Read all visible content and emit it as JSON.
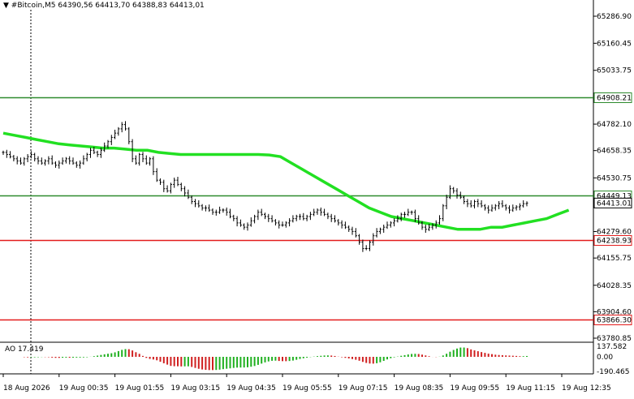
{
  "header": {
    "symbol": "▼ #Bitcoin,M5",
    "ohlc": "64390,56 64413,70 64388,83 64413,01"
  },
  "chart_data": {
    "type": "line",
    "y_axis_labels": [
      {
        "label": "65286.90",
        "value": 65286.9
      },
      {
        "label": "65160.45",
        "value": 65160.45
      },
      {
        "label": "65033.75",
        "value": 65033.75
      },
      {
        "label": "64782.10",
        "value": 64782.1
      },
      {
        "label": "64658.35",
        "value": 64658.35
      },
      {
        "label": "64530.75",
        "value": 64530.75
      },
      {
        "label": "64279.60",
        "value": 64279.6
      },
      {
        "label": "64155.75",
        "value": 64155.75
      },
      {
        "label": "64028.35",
        "value": 64028.35
      },
      {
        "label": "63904.60",
        "value": 63904.6
      },
      {
        "label": "63780.85",
        "value": 63780.85
      }
    ],
    "x_axis_labels": [
      {
        "label": "18 Aug 2026",
        "idx": 0
      },
      {
        "label": "19 Aug 00:35",
        "idx": 16
      },
      {
        "label": "19 Aug 01:55",
        "idx": 32
      },
      {
        "label": "19 Aug 03:15",
        "idx": 48
      },
      {
        "label": "19 Aug 04:35",
        "idx": 64
      },
      {
        "label": "19 Aug 05:55",
        "idx": 80
      },
      {
        "label": "19 Aug 07:15",
        "idx": 96
      },
      {
        "label": "19 Aug 08:35",
        "idx": 112
      },
      {
        "label": "19 Aug 09:55",
        "idx": 128
      },
      {
        "label": "19 Aug 11:15",
        "idx": 144
      },
      {
        "label": "19 Aug 12:35",
        "idx": 160
      }
    ],
    "ylim": [
      63780.85,
      65286.9
    ],
    "horizontal_levels": [
      {
        "value": 64908.21,
        "label": "64908.21",
        "color": "#2e8b2e"
      },
      {
        "value": 64449.13,
        "label": "64449.13",
        "color": "#2e8b2e"
      },
      {
        "value": 64238.93,
        "label": "64238.93",
        "color": "#e31c1c"
      },
      {
        "value": 63866.3,
        "label": "63866.30",
        "color": "#e31c1c"
      }
    ],
    "current_price": {
      "value": 64413.01,
      "label": "64413.01"
    },
    "closes": [
      64650,
      64640,
      64630,
      64620,
      64610,
      64600,
      64620,
      64630,
      64640,
      64620,
      64610,
      64600,
      64610,
      64620,
      64600,
      64590,
      64600,
      64610,
      64620,
      64610,
      64600,
      64590,
      64600,
      64620,
      64640,
      64660,
      64650,
      64640,
      64660,
      64680,
      64700,
      64720,
      64740,
      64760,
      64780,
      64760,
      64700,
      64620,
      64600,
      64640,
      64620,
      64600,
      64620,
      64560,
      64520,
      64510,
      64480,
      64470,
      64500,
      64520,
      64500,
      64480,
      64460,
      64440,
      64420,
      64410,
      64400,
      64390,
      64390,
      64380,
      64370,
      64370,
      64380,
      64380,
      64370,
      64350,
      64340,
      64320,
      64310,
      64300,
      64310,
      64330,
      64350,
      64370,
      64360,
      64350,
      64340,
      64330,
      64320,
      64310,
      64310,
      64320,
      64330,
      64340,
      64350,
      64350,
      64340,
      64350,
      64360,
      64370,
      64380,
      64370,
      64360,
      64350,
      64340,
      64330,
      64320,
      64310,
      64300,
      64290,
      64280,
      64260,
      64230,
      64200,
      64200,
      64230,
      64260,
      64280,
      64290,
      64300,
      64310,
      64320,
      64330,
      64340,
      64360,
      64360,
      64370,
      64370,
      64340,
      64320,
      64300,
      64290,
      64300,
      64310,
      64320,
      64340,
      64400,
      64440,
      64480,
      64470,
      64450,
      64440,
      64420,
      64410,
      64400,
      64420,
      64410,
      64400,
      64390,
      64380,
      64390,
      64400,
      64410,
      64400,
      64390,
      64380,
      64390,
      64395,
      64400,
      64410,
      64413
    ],
    "ma": [
      64740,
      64730,
      64720,
      64710,
      64700,
      64690,
      64685,
      64680,
      64675,
      64670,
      64670,
      64665,
      64660,
      64660,
      64650,
      64645,
      64640,
      64640,
      64640,
      64640,
      64640,
      64640,
      64640,
      64640,
      64638,
      64630,
      64600,
      64570,
      64540,
      64510,
      64480,
      64450,
      64420,
      64390,
      64370,
      64350,
      64340,
      64330,
      64320,
      64310,
      64300,
      64290,
      64290,
      64290,
      64300,
      64300,
      64310,
      64320,
      64330,
      64340,
      64360,
      64380
    ],
    "ma_start_idx": 0,
    "ma_end_idx": 162,
    "ao": {
      "label": "AO 17.419",
      "axis_labels": [
        {
          "label": "137.582",
          "value": 137.582
        },
        {
          "label": "0.00",
          "value": 0
        },
        {
          "label": "-190.465",
          "value": -190.465
        }
      ],
      "ylim": [
        -190.465,
        137.582
      ]
    }
  }
}
